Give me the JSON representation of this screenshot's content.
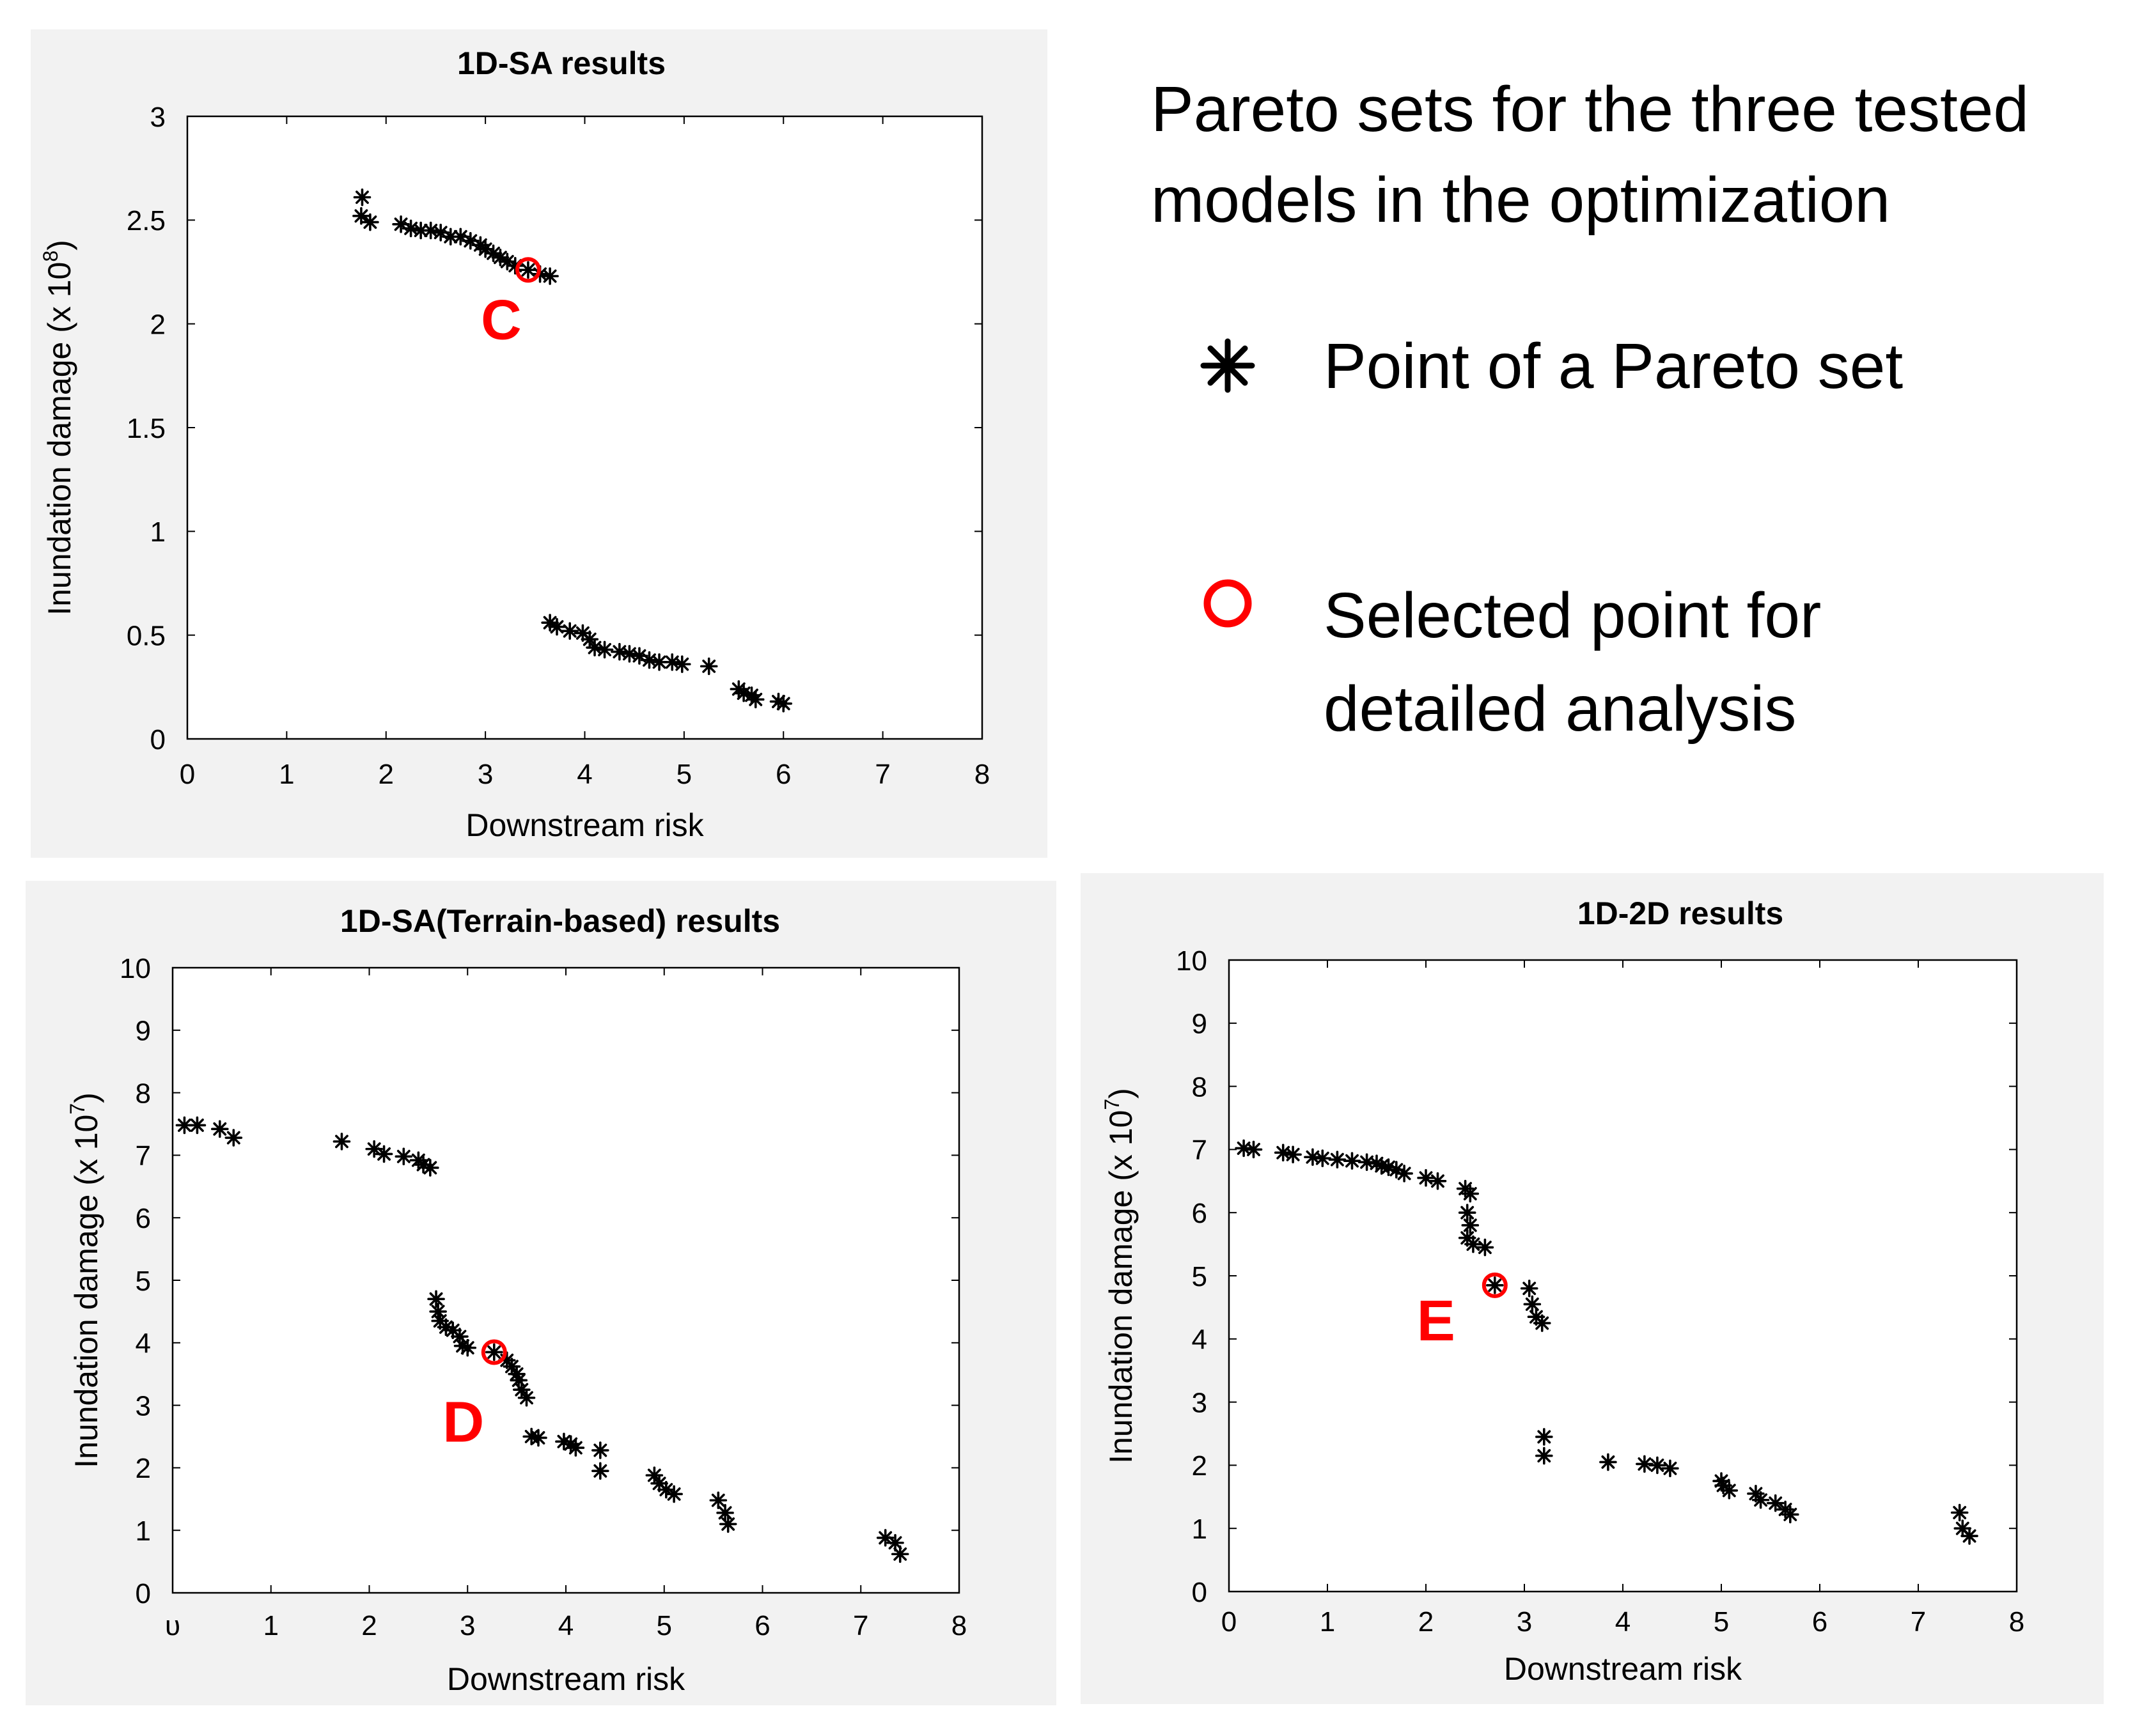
{
  "legend": {
    "title_line1": "Pareto sets for the three tested",
    "title_line2": "models in the optimization",
    "pareto_point_label": "Point of a Pareto set",
    "pareto_point_icon": "asterisk-icon",
    "selected_point_line1": "Selected point for",
    "selected_point_line2": "detailed analysis",
    "selected_point_icon": "red-circle-icon",
    "colors": {
      "points": "#000000",
      "selected": "#ff0000",
      "callout": "#ff0000",
      "panel_bg": "#f2f2f2"
    }
  },
  "chart_data": [
    {
      "id": "panel-1",
      "type": "scatter",
      "title": "1D-SA results",
      "xlabel": "Downstream risk",
      "ylabel_prefix": "Inundation damage (x 10",
      "ylabel_exp": "8",
      "ylabel_suffix": ")",
      "xlim": [
        0,
        8
      ],
      "ylim": [
        0,
        3
      ],
      "xticks": [
        0,
        1,
        2,
        3,
        4,
        5,
        6,
        7,
        8
      ],
      "yticks": [
        0,
        0.5,
        1,
        1.5,
        2,
        2.5,
        3
      ],
      "ytick_labels": [
        "0",
        "0.5",
        "1",
        "1.5",
        "2",
        "2.5",
        "3"
      ],
      "selected_point": {
        "label": "C",
        "x": 3.43,
        "y": 2.26
      },
      "points": [
        [
          1.76,
          2.61
        ],
        [
          1.75,
          2.52
        ],
        [
          1.84,
          2.49
        ],
        [
          2.15,
          2.48
        ],
        [
          2.25,
          2.46
        ],
        [
          2.35,
          2.45
        ],
        [
          2.45,
          2.45
        ],
        [
          2.55,
          2.44
        ],
        [
          2.65,
          2.42
        ],
        [
          2.75,
          2.42
        ],
        [
          2.85,
          2.4
        ],
        [
          2.95,
          2.38
        ],
        [
          3.0,
          2.36
        ],
        [
          3.08,
          2.34
        ],
        [
          3.15,
          2.32
        ],
        [
          3.22,
          2.3
        ],
        [
          3.3,
          2.28
        ],
        [
          3.43,
          2.26
        ],
        [
          3.55,
          2.24
        ],
        [
          3.65,
          2.23
        ],
        [
          3.65,
          0.56
        ],
        [
          3.72,
          0.54
        ],
        [
          3.85,
          0.52
        ],
        [
          3.98,
          0.51
        ],
        [
          4.05,
          0.48
        ],
        [
          4.1,
          0.44
        ],
        [
          4.2,
          0.43
        ],
        [
          4.35,
          0.42
        ],
        [
          4.45,
          0.41
        ],
        [
          4.55,
          0.4
        ],
        [
          4.65,
          0.38
        ],
        [
          4.75,
          0.37
        ],
        [
          4.88,
          0.37
        ],
        [
          4.98,
          0.36
        ],
        [
          5.25,
          0.35
        ],
        [
          5.55,
          0.24
        ],
        [
          5.6,
          0.22
        ],
        [
          5.68,
          0.21
        ],
        [
          5.72,
          0.19
        ],
        [
          5.95,
          0.18
        ],
        [
          6.0,
          0.17
        ]
      ]
    },
    {
      "id": "panel-2",
      "type": "scatter",
      "title": "1D-SA(Terrain-based) results",
      "xlabel": "Downstream risk",
      "ylabel_prefix": "Inundation damage (x 10",
      "ylabel_exp": "7",
      "ylabel_suffix": ")",
      "xlim": [
        0,
        8
      ],
      "ylim": [
        0,
        10
      ],
      "xticks": [
        0,
        1,
        2,
        3,
        4,
        5,
        6,
        7,
        8
      ],
      "xtick_labels": [
        "υ",
        "1",
        "2",
        "3",
        "4",
        "5",
        "6",
        "7",
        "8"
      ],
      "yticks": [
        0,
        1,
        2,
        3,
        4,
        5,
        6,
        7,
        8,
        9,
        10
      ],
      "ytick_labels": [
        "0",
        "1",
        "2",
        "3",
        "4",
        "5",
        "6",
        "7",
        "8",
        "9",
        "10"
      ],
      "selected_point": {
        "label": "D",
        "x": 3.27,
        "y": 3.85
      },
      "points": [
        [
          0.12,
          7.48
        ],
        [
          0.25,
          7.48
        ],
        [
          0.48,
          7.42
        ],
        [
          0.62,
          7.28
        ],
        [
          1.72,
          7.22
        ],
        [
          2.05,
          7.1
        ],
        [
          2.15,
          7.02
        ],
        [
          2.35,
          6.98
        ],
        [
          2.5,
          6.92
        ],
        [
          2.55,
          6.85
        ],
        [
          2.62,
          6.8
        ],
        [
          2.68,
          4.7
        ],
        [
          2.7,
          4.5
        ],
        [
          2.72,
          4.35
        ],
        [
          2.78,
          4.25
        ],
        [
          2.85,
          4.2
        ],
        [
          2.92,
          4.1
        ],
        [
          2.95,
          3.95
        ],
        [
          3.0,
          3.92
        ],
        [
          3.27,
          3.85
        ],
        [
          3.4,
          3.72
        ],
        [
          3.45,
          3.62
        ],
        [
          3.5,
          3.5
        ],
        [
          3.52,
          3.4
        ],
        [
          3.55,
          3.25
        ],
        [
          3.6,
          3.12
        ],
        [
          3.65,
          2.5
        ],
        [
          3.72,
          2.48
        ],
        [
          3.98,
          2.42
        ],
        [
          4.05,
          2.38
        ],
        [
          4.1,
          2.32
        ],
        [
          4.35,
          2.28
        ],
        [
          4.35,
          1.95
        ],
        [
          4.9,
          1.88
        ],
        [
          4.95,
          1.75
        ],
        [
          5.02,
          1.65
        ],
        [
          5.1,
          1.58
        ],
        [
          5.55,
          1.48
        ],
        [
          5.62,
          1.28
        ],
        [
          5.65,
          1.1
        ],
        [
          7.25,
          0.88
        ],
        [
          7.35,
          0.8
        ],
        [
          7.4,
          0.62
        ]
      ]
    },
    {
      "id": "panel-3",
      "type": "scatter",
      "title": "1D-2D results",
      "xlabel": "Downstream risk",
      "ylabel_prefix": "Inundation damage (x 10",
      "ylabel_exp": "7",
      "ylabel_suffix": ")",
      "xlim": [
        0,
        8
      ],
      "ylim": [
        0,
        10
      ],
      "xticks": [
        0,
        1,
        2,
        3,
        4,
        5,
        6,
        7,
        8
      ],
      "yticks": [
        0,
        1,
        2,
        3,
        4,
        5,
        6,
        7,
        8,
        9,
        10
      ],
      "ytick_labels": [
        "0",
        "1",
        "2",
        "3",
        "4",
        "5",
        "6",
        "7",
        "8",
        "9",
        "10"
      ],
      "selected_point": {
        "label": "E",
        "x": 2.7,
        "y": 4.85
      },
      "points": [
        [
          0.15,
          7.02
        ],
        [
          0.25,
          7.0
        ],
        [
          0.55,
          6.95
        ],
        [
          0.65,
          6.92
        ],
        [
          0.85,
          6.88
        ],
        [
          0.95,
          6.86
        ],
        [
          1.1,
          6.84
        ],
        [
          1.25,
          6.82
        ],
        [
          1.4,
          6.8
        ],
        [
          1.5,
          6.78
        ],
        [
          1.55,
          6.74
        ],
        [
          1.62,
          6.72
        ],
        [
          1.7,
          6.68
        ],
        [
          1.78,
          6.62
        ],
        [
          2.0,
          6.55
        ],
        [
          2.12,
          6.5
        ],
        [
          2.4,
          6.38
        ],
        [
          2.45,
          6.3
        ],
        [
          2.42,
          6.0
        ],
        [
          2.45,
          5.8
        ],
        [
          2.42,
          5.6
        ],
        [
          2.48,
          5.5
        ],
        [
          2.6,
          5.45
        ],
        [
          2.7,
          4.85
        ],
        [
          3.05,
          4.8
        ],
        [
          3.08,
          4.55
        ],
        [
          3.12,
          4.35
        ],
        [
          3.18,
          4.25
        ],
        [
          3.2,
          2.45
        ],
        [
          3.2,
          2.15
        ],
        [
          3.85,
          2.05
        ],
        [
          4.22,
          2.02
        ],
        [
          4.35,
          2.0
        ],
        [
          4.48,
          1.95
        ],
        [
          5.0,
          1.75
        ],
        [
          5.02,
          1.68
        ],
        [
          5.08,
          1.6
        ],
        [
          5.35,
          1.55
        ],
        [
          5.4,
          1.45
        ],
        [
          5.55,
          1.4
        ],
        [
          5.65,
          1.3
        ],
        [
          5.7,
          1.22
        ],
        [
          7.42,
          1.25
        ],
        [
          7.45,
          1.0
        ],
        [
          7.52,
          0.88
        ]
      ]
    }
  ]
}
